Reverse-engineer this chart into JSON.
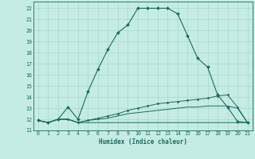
{
  "xlabel": "Humidex (Indice chaleur)",
  "background_color": "#c5ece4",
  "grid_color": "#aad6ce",
  "line_color": "#1a6b5a",
  "xlim": [
    -0.5,
    21.5
  ],
  "ylim": [
    11.0,
    22.6
  ],
  "xticks": [
    0,
    1,
    2,
    3,
    4,
    5,
    6,
    7,
    8,
    9,
    10,
    11,
    12,
    13,
    14,
    15,
    16,
    17,
    18,
    19,
    20,
    21
  ],
  "yticks": [
    11,
    12,
    13,
    14,
    15,
    16,
    17,
    18,
    19,
    20,
    21,
    22
  ],
  "line1_x": [
    0,
    1,
    2,
    3,
    4,
    5,
    6,
    7,
    8,
    9,
    10,
    11,
    12,
    13,
    14,
    15,
    16,
    17,
    18,
    19,
    20,
    21
  ],
  "line1_y": [
    11.9,
    11.7,
    12.0,
    13.1,
    12.0,
    14.5,
    16.5,
    18.3,
    19.8,
    20.5,
    22.0,
    22.0,
    22.0,
    22.0,
    21.5,
    19.5,
    17.5,
    16.7,
    14.2,
    13.1,
    11.8,
    11.7
  ],
  "line2_x": [
    0,
    1,
    2,
    3,
    4,
    5,
    6,
    7,
    8,
    9,
    10,
    11,
    12,
    13,
    14,
    15,
    16,
    17,
    18,
    19,
    20,
    21
  ],
  "line2_y": [
    11.9,
    11.7,
    12.0,
    12.0,
    11.7,
    11.9,
    12.1,
    12.3,
    12.5,
    12.8,
    13.0,
    13.2,
    13.4,
    13.5,
    13.6,
    13.7,
    13.8,
    13.9,
    14.1,
    14.2,
    13.1,
    11.7
  ],
  "line3_x": [
    0,
    1,
    2,
    3,
    4,
    5,
    6,
    7,
    8,
    9,
    10,
    11,
    12,
    13,
    14,
    15,
    16,
    17,
    18,
    19,
    20,
    21
  ],
  "line3_y": [
    11.9,
    11.7,
    12.0,
    12.0,
    11.7,
    11.9,
    12.0,
    12.1,
    12.3,
    12.5,
    12.6,
    12.7,
    12.8,
    12.9,
    13.0,
    13.1,
    13.1,
    13.2,
    13.2,
    13.2,
    13.0,
    11.7
  ],
  "line4_x": [
    0,
    1,
    2,
    3,
    4,
    5,
    6,
    7,
    8,
    9,
    10,
    11,
    12,
    13,
    14,
    15,
    16,
    17,
    18,
    19,
    20,
    21
  ],
  "line4_y": [
    11.9,
    11.7,
    12.0,
    12.0,
    11.7,
    11.7,
    11.7,
    11.7,
    11.7,
    11.7,
    11.7,
    11.7,
    11.7,
    11.7,
    11.7,
    11.7,
    11.7,
    11.7,
    11.7,
    11.7,
    11.7,
    11.7
  ]
}
